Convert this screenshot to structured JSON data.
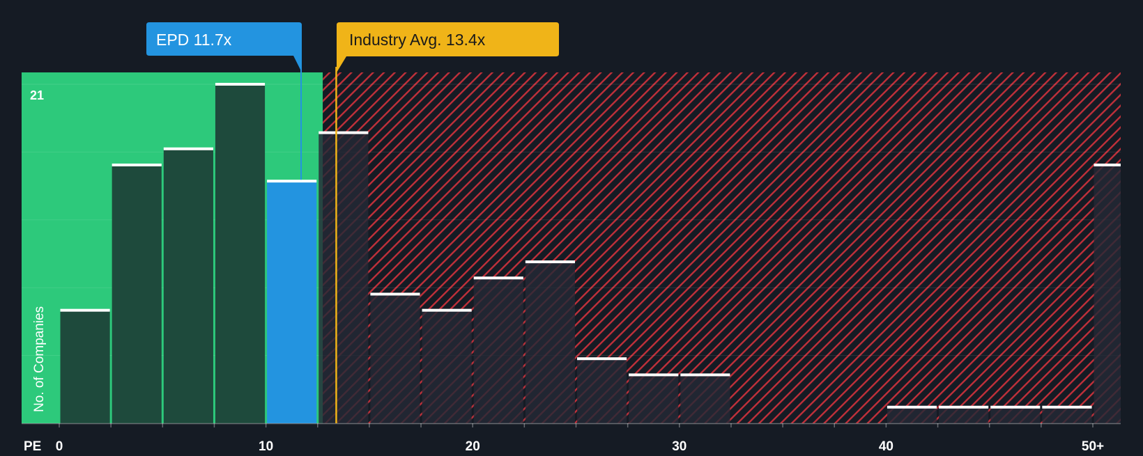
{
  "chart_data": {
    "type": "bar",
    "xlabel": "PE",
    "ylabel": "No. of Companies",
    "ylim": [
      0,
      21
    ],
    "ymax_label": "21",
    "xlim": [
      0,
      51.5
    ],
    "x_ticks": [
      {
        "value": 0,
        "label": "0"
      },
      {
        "value": 10,
        "label": "10"
      },
      {
        "value": 20,
        "label": "20"
      },
      {
        "value": 30,
        "label": "30"
      },
      {
        "value": 40,
        "label": "40"
      },
      {
        "value": 50,
        "label": "50+"
      }
    ],
    "bins": [
      {
        "start": 0,
        "end": 2.5,
        "count": 7
      },
      {
        "start": 2.5,
        "end": 5,
        "count": 16
      },
      {
        "start": 5,
        "end": 7.5,
        "count": 17
      },
      {
        "start": 7.5,
        "end": 10,
        "count": 21
      },
      {
        "start": 10,
        "end": 12.5,
        "count": 15,
        "highlight": true
      },
      {
        "start": 12.5,
        "end": 15,
        "count": 18
      },
      {
        "start": 15,
        "end": 17.5,
        "count": 8
      },
      {
        "start": 17.5,
        "end": 20,
        "count": 7
      },
      {
        "start": 20,
        "end": 22.5,
        "count": 9
      },
      {
        "start": 22.5,
        "end": 25,
        "count": 10
      },
      {
        "start": 25,
        "end": 27.5,
        "count": 4
      },
      {
        "start": 27.5,
        "end": 30,
        "count": 3
      },
      {
        "start": 30,
        "end": 32.5,
        "count": 3
      },
      {
        "start": 32.5,
        "end": 35,
        "count": 0
      },
      {
        "start": 35,
        "end": 37.5,
        "count": 0
      },
      {
        "start": 37.5,
        "end": 40,
        "count": 0
      },
      {
        "start": 40,
        "end": 42.5,
        "count": 1
      },
      {
        "start": 42.5,
        "end": 45,
        "count": 1
      },
      {
        "start": 45,
        "end": 47.5,
        "count": 1
      },
      {
        "start": 47.5,
        "end": 50,
        "count": 1
      },
      {
        "start": 50,
        "end": 51.5,
        "count": 16
      }
    ],
    "company": {
      "label": "EPD 11.7x",
      "value": 11.7,
      "color": "#2394e0"
    },
    "industry": {
      "label": "Industry Avg. 13.4x",
      "value": 13.4,
      "color": "#f0b418"
    },
    "colors": {
      "background": "#151b24",
      "undervalued_zone": "#2dc97b",
      "overvalued_stripe": "#c0303a",
      "bar_green_zone": "#1e4a3c",
      "bar_red_zone": "#252a36",
      "bar_highlight": "#2394e0",
      "bar_cap": "#ffffff"
    }
  }
}
